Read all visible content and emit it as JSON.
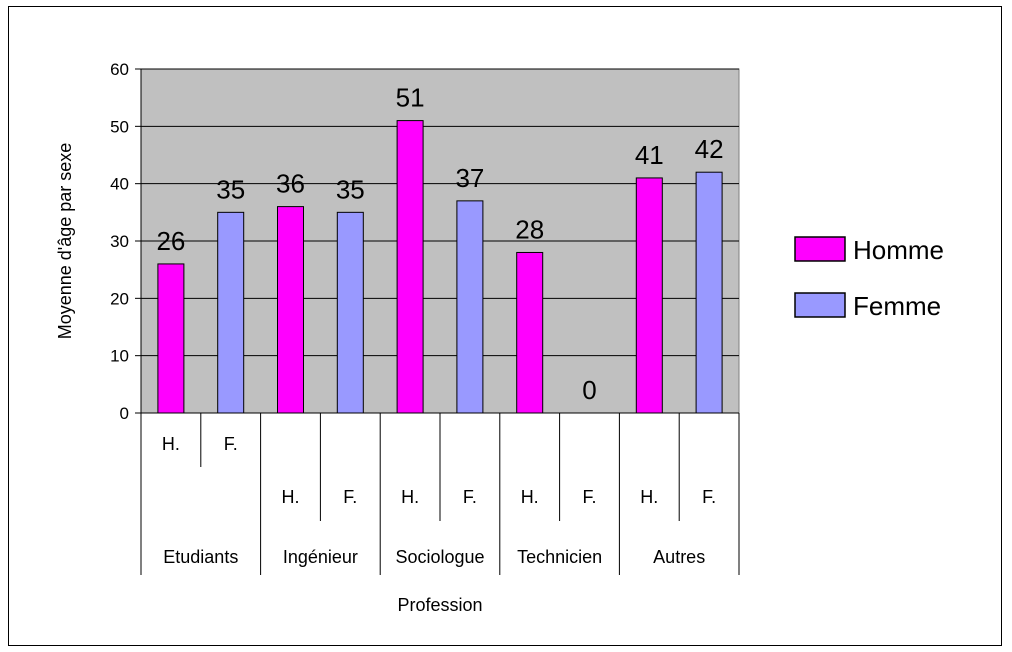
{
  "chart_data": {
    "type": "bar",
    "ylabel": "Moyenne d'âge par sexe",
    "xlabel": "Profession",
    "ylim": [
      0,
      60
    ],
    "yticks": [
      0,
      10,
      20,
      30,
      40,
      50,
      60
    ],
    "grid": true,
    "legend_position": "right",
    "groups": [
      "Etudiants",
      "Ingénieur",
      "Sociologue",
      "Technicien",
      "Autres"
    ],
    "subcategories": [
      "H.",
      "F.",
      "H.",
      "F.",
      "H.",
      "F.",
      "H.",
      "F.",
      "H.",
      "F."
    ],
    "series": [
      {
        "name": "Homme",
        "color": "#ff00ff",
        "values": [
          26,
          36,
          51,
          28,
          41
        ]
      },
      {
        "name": "Femme",
        "color": "#9999ff",
        "values": [
          35,
          35,
          37,
          0,
          42
        ]
      }
    ],
    "plot_background": "#c0c0c0"
  }
}
